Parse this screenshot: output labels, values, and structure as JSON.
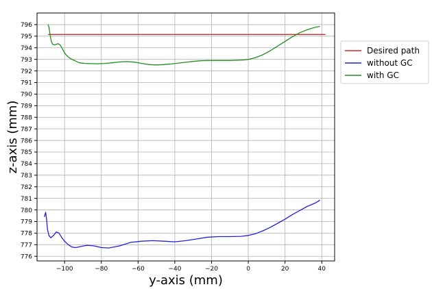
{
  "chart_data": {
    "type": "line",
    "xlabel": "y-axis (mm)",
    "ylabel": "z-axis (mm)",
    "xlim": [
      -115,
      47
    ],
    "ylim": [
      775.6,
      797.0
    ],
    "xticks": [
      -100,
      -80,
      -60,
      -40,
      -20,
      0,
      20,
      40
    ],
    "xtick_labels": [
      "−100",
      "−80",
      "−60",
      "−40",
      "−20",
      "0",
      "20",
      "40"
    ],
    "yticks": [
      776,
      777,
      778,
      779,
      780,
      781,
      782,
      783,
      784,
      785,
      786,
      787,
      788,
      789,
      790,
      791,
      792,
      793,
      794,
      795,
      796
    ],
    "ytick_labels": [
      "776",
      "777",
      "778",
      "779",
      "780",
      "781",
      "782",
      "783",
      "784",
      "785",
      "786",
      "787",
      "788",
      "789",
      "790",
      "791",
      "792",
      "793",
      "794",
      "795",
      "796"
    ],
    "grid": true,
    "legend_position": "outside-right",
    "series": [
      {
        "name": "Desired path",
        "color": "#d62728",
        "x": [
          -109,
          42
        ],
        "y": [
          795.15,
          795.15
        ]
      },
      {
        "name": "without GC",
        "color": "#1f1fd6",
        "x": [
          -111,
          -110.3,
          -109.8,
          -109.3,
          -108.5,
          -107.5,
          -106,
          -104.5,
          -103,
          -101.5,
          -100,
          -98,
          -96,
          -94,
          -91,
          -88,
          -84,
          -80,
          -76,
          -70,
          -64,
          -58,
          -52,
          -46,
          -40,
          -34,
          -28,
          -22,
          -16,
          -10,
          -4,
          0,
          4,
          8,
          12,
          16,
          20,
          24,
          28,
          32,
          35,
          37,
          38,
          39
        ],
        "y": [
          779.4,
          779.8,
          779.2,
          778.3,
          777.8,
          777.6,
          777.8,
          778.1,
          778.0,
          777.6,
          777.3,
          777.0,
          776.8,
          776.75,
          776.85,
          776.95,
          776.9,
          776.75,
          776.72,
          776.9,
          777.2,
          777.3,
          777.35,
          777.3,
          777.25,
          777.35,
          777.5,
          777.65,
          777.7,
          777.7,
          777.72,
          777.8,
          777.95,
          778.2,
          778.5,
          778.85,
          779.2,
          779.6,
          779.95,
          780.3,
          780.5,
          780.65,
          780.75,
          780.85
        ]
      },
      {
        "name": "with GC",
        "color": "#1f8c1f",
        "x": [
          -109,
          -108.5,
          -108,
          -107.3,
          -106.5,
          -105.5,
          -104.5,
          -103.5,
          -102.5,
          -101.5,
          -100.5,
          -99.5,
          -98,
          -96,
          -94,
          -92,
          -89,
          -86,
          -82,
          -78,
          -74,
          -70,
          -66,
          -62,
          -58,
          -54,
          -50,
          -46,
          -42,
          -38,
          -34,
          -30,
          -26,
          -22,
          -18,
          -14,
          -10,
          -6,
          -2,
          0,
          4,
          8,
          12,
          16,
          20,
          24,
          28,
          32,
          36,
          39
        ],
        "y": [
          796.0,
          795.8,
          795.2,
          794.6,
          794.3,
          794.25,
          794.3,
          794.35,
          794.25,
          794.0,
          793.7,
          793.45,
          793.2,
          793.0,
          792.85,
          792.7,
          792.65,
          792.63,
          792.62,
          792.65,
          792.7,
          792.78,
          792.8,
          792.76,
          792.65,
          792.55,
          792.52,
          792.55,
          792.6,
          792.68,
          792.75,
          792.82,
          792.88,
          792.9,
          792.9,
          792.9,
          792.9,
          792.92,
          792.95,
          793.0,
          793.15,
          793.4,
          793.75,
          794.15,
          794.55,
          794.95,
          795.3,
          795.55,
          795.75,
          795.85
        ]
      }
    ]
  }
}
